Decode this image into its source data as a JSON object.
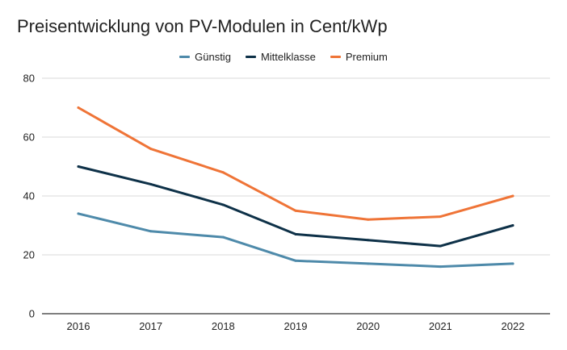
{
  "chart_data": {
    "type": "line",
    "title": "Preisentwicklung von PV-Modulen in Cent/kWp",
    "xlabel": "",
    "ylabel": "",
    "categories": [
      "2016",
      "2017",
      "2018",
      "2019",
      "2020",
      "2021",
      "2022"
    ],
    "ylim": [
      0,
      80
    ],
    "yticks": [
      0,
      20,
      40,
      60,
      80
    ],
    "grid": true,
    "legend_position": "top-center",
    "series": [
      {
        "name": "Günstig",
        "color": "#4e8aaa",
        "values": [
          34,
          28,
          26,
          18,
          17,
          16,
          17
        ]
      },
      {
        "name": "Mittelklasse",
        "color": "#0e3148",
        "values": [
          50,
          44,
          37,
          27,
          25,
          23,
          30
        ]
      },
      {
        "name": "Premium",
        "color": "#ef7437",
        "values": [
          70,
          56,
          48,
          35,
          32,
          33,
          40
        ]
      }
    ]
  }
}
